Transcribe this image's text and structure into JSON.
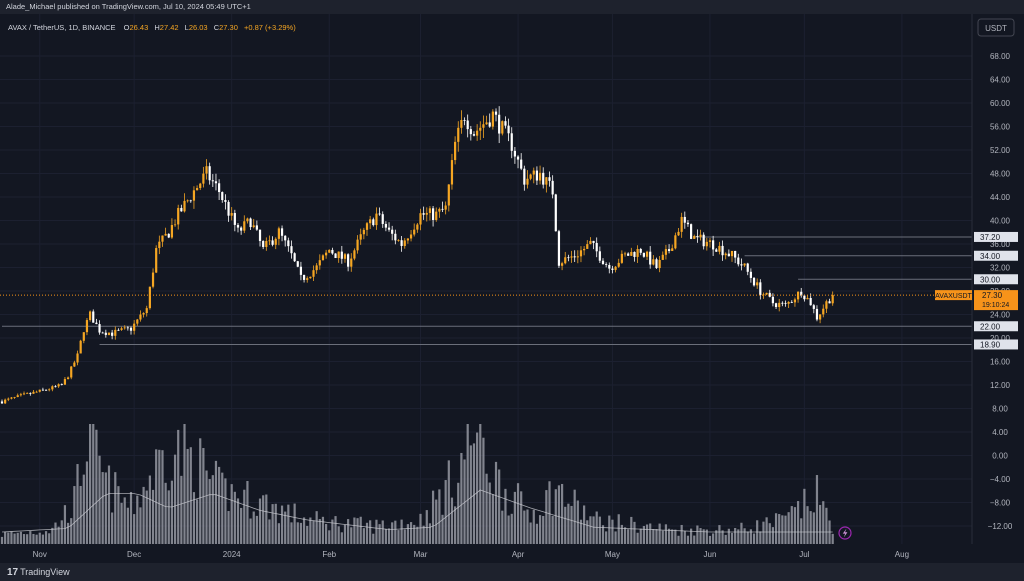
{
  "header": {
    "publisher": "Alade_Michael published on TradingView.com, Jul 10, 2024 05:49 UTC+1"
  },
  "legend": {
    "symbol": "AVAX / TetherUS, 1D, BINANCE",
    "open": "26.43",
    "high": "27.42",
    "low": "26.03",
    "close": "27.30",
    "change": "+0.87 (+3.29%)"
  },
  "currency_button": "USDT",
  "footer": {
    "logo_text": "TradingView",
    "logo_mark": "17"
  },
  "colors": {
    "background": "#131722",
    "up": "#f5a623",
    "down": "#ffffff",
    "volume": "#9598a1",
    "level_line": "#6b6f7a",
    "current_price": "#f7931a",
    "ma_line": "#c9cbd1"
  },
  "chart_data": {
    "type": "candlestick",
    "symbol": "AVAXUSDT",
    "timeframe": "1D",
    "y_axis": {
      "ticks": [
        "68.00",
        "64.00",
        "60.00",
        "56.00",
        "52.00",
        "48.00",
        "44.00",
        "40.00",
        "36.00",
        "32.00",
        "28.00",
        "24.00",
        "20.00",
        "16.00",
        "12.00",
        "8.00",
        "4.00",
        "0.00",
        "−4.00",
        "−8.00",
        "−12.00"
      ],
      "range": [
        -14,
        70
      ],
      "unit": "USDT"
    },
    "x_axis": {
      "ticks": [
        "Nov",
        "Dec",
        "2024",
        "Feb",
        "Mar",
        "Apr",
        "May",
        "Jun",
        "Jul",
        "Aug"
      ],
      "range": [
        "2023-10-20",
        "2024-08-22"
      ]
    },
    "horizontal_levels": [
      37.2,
      34.0,
      30.0,
      22.0,
      18.9
    ],
    "current_price": {
      "label": "AVAXUSDT",
      "value": "27.30",
      "countdown": "19:10:24"
    },
    "close_path": [
      [
        "2023-10-20",
        9.2
      ],
      [
        "2023-10-27",
        10.3
      ],
      [
        "2023-11-03",
        11.2
      ],
      [
        "2023-11-08",
        12.0
      ],
      [
        "2023-11-10",
        13.6
      ],
      [
        "2023-11-13",
        17.0
      ],
      [
        "2023-11-15",
        21.5
      ],
      [
        "2023-11-17",
        24.0
      ],
      [
        "2023-11-20",
        21.3
      ],
      [
        "2023-11-24",
        20.8
      ],
      [
        "2023-11-30",
        21.6
      ],
      [
        "2023-12-05",
        25.0
      ],
      [
        "2023-12-08",
        35.0
      ],
      [
        "2023-12-12",
        38.0
      ],
      [
        "2023-12-15",
        41.0
      ],
      [
        "2023-12-20",
        45.0
      ],
      [
        "2023-12-24",
        48.0
      ],
      [
        "2023-12-28",
        45.0
      ],
      [
        "2024-01-03",
        38.0
      ],
      [
        "2024-01-07",
        40.0
      ],
      [
        "2024-01-11",
        35.0
      ],
      [
        "2024-01-16",
        38.0
      ],
      [
        "2024-01-20",
        34.0
      ],
      [
        "2024-01-23",
        30.0
      ],
      [
        "2024-01-28",
        32.0
      ],
      [
        "2024-02-01",
        35.0
      ],
      [
        "2024-02-07",
        33.0
      ],
      [
        "2024-02-12",
        38.0
      ],
      [
        "2024-02-16",
        41.0
      ],
      [
        "2024-02-20",
        38.0
      ],
      [
        "2024-02-24",
        36.0
      ],
      [
        "2024-03-01",
        41.0
      ],
      [
        "2024-03-06",
        41.0
      ],
      [
        "2024-03-09",
        42.0
      ],
      [
        "2024-03-12",
        53.0
      ],
      [
        "2024-03-15",
        58.0
      ],
      [
        "2024-03-18",
        55.0
      ],
      [
        "2024-03-24",
        58.0
      ],
      [
        "2024-03-30",
        53.0
      ],
      [
        "2024-04-03",
        47.0
      ],
      [
        "2024-04-08",
        48.0
      ],
      [
        "2024-04-12",
        45.0
      ],
      [
        "2024-04-14",
        33.0
      ],
      [
        "2024-04-19",
        34.0
      ],
      [
        "2024-04-24",
        36.0
      ],
      [
        "2024-04-30",
        32.0
      ],
      [
        "2024-05-05",
        34.0
      ],
      [
        "2024-05-10",
        35.0
      ],
      [
        "2024-05-15",
        32.0
      ],
      [
        "2024-05-19",
        35.0
      ],
      [
        "2024-05-23",
        40.0
      ],
      [
        "2024-05-27",
        37.0
      ],
      [
        "2024-06-02",
        36.0
      ],
      [
        "2024-06-08",
        34.0
      ],
      [
        "2024-06-12",
        32.0
      ],
      [
        "2024-06-17",
        28.0
      ],
      [
        "2024-06-21",
        26.0
      ],
      [
        "2024-06-25",
        25.5
      ],
      [
        "2024-06-30",
        28.0
      ],
      [
        "2024-07-03",
        26.0
      ],
      [
        "2024-07-05",
        23.5
      ],
      [
        "2024-07-08",
        26.0
      ],
      [
        "2024-07-10",
        27.3
      ]
    ],
    "volume_profile": [
      [
        "2023-10-20",
        0.08
      ],
      [
        "2023-11-05",
        0.12
      ],
      [
        "2023-11-12",
        0.35
      ],
      [
        "2023-11-16",
        0.9
      ],
      [
        "2023-11-22",
        0.5
      ],
      [
        "2023-11-30",
        0.3
      ],
      [
        "2023-12-06",
        0.55
      ],
      [
        "2023-12-12",
        0.8
      ],
      [
        "2023-12-20",
        0.7
      ],
      [
        "2023-12-28",
        0.45
      ],
      [
        "2024-01-10",
        0.35
      ],
      [
        "2024-01-25",
        0.2
      ],
      [
        "2024-02-15",
        0.15
      ],
      [
        "2024-03-01",
        0.2
      ],
      [
        "2024-03-12",
        0.55
      ],
      [
        "2024-03-18",
        0.95
      ],
      [
        "2024-03-26",
        0.5
      ],
      [
        "2024-04-05",
        0.25
      ],
      [
        "2024-04-13",
        0.45
      ],
      [
        "2024-04-25",
        0.2
      ],
      [
        "2024-05-20",
        0.12
      ],
      [
        "2024-06-10",
        0.12
      ],
      [
        "2024-06-25",
        0.2
      ],
      [
        "2024-07-05",
        0.4
      ],
      [
        "2024-07-10",
        0.15
      ]
    ],
    "volume_ma_profile": [
      [
        "2023-10-20",
        0.1
      ],
      [
        "2023-11-10",
        0.13
      ],
      [
        "2023-11-22",
        0.42
      ],
      [
        "2023-12-02",
        0.42
      ],
      [
        "2023-12-12",
        0.3
      ],
      [
        "2023-12-26",
        0.42
      ],
      [
        "2024-01-10",
        0.28
      ],
      [
        "2024-01-25",
        0.2
      ],
      [
        "2024-02-20",
        0.12
      ],
      [
        "2024-03-05",
        0.14
      ],
      [
        "2024-03-20",
        0.45
      ],
      [
        "2024-04-05",
        0.3
      ],
      [
        "2024-04-25",
        0.14
      ],
      [
        "2024-06-01",
        0.1
      ],
      [
        "2024-07-10",
        0.1
      ]
    ]
  }
}
